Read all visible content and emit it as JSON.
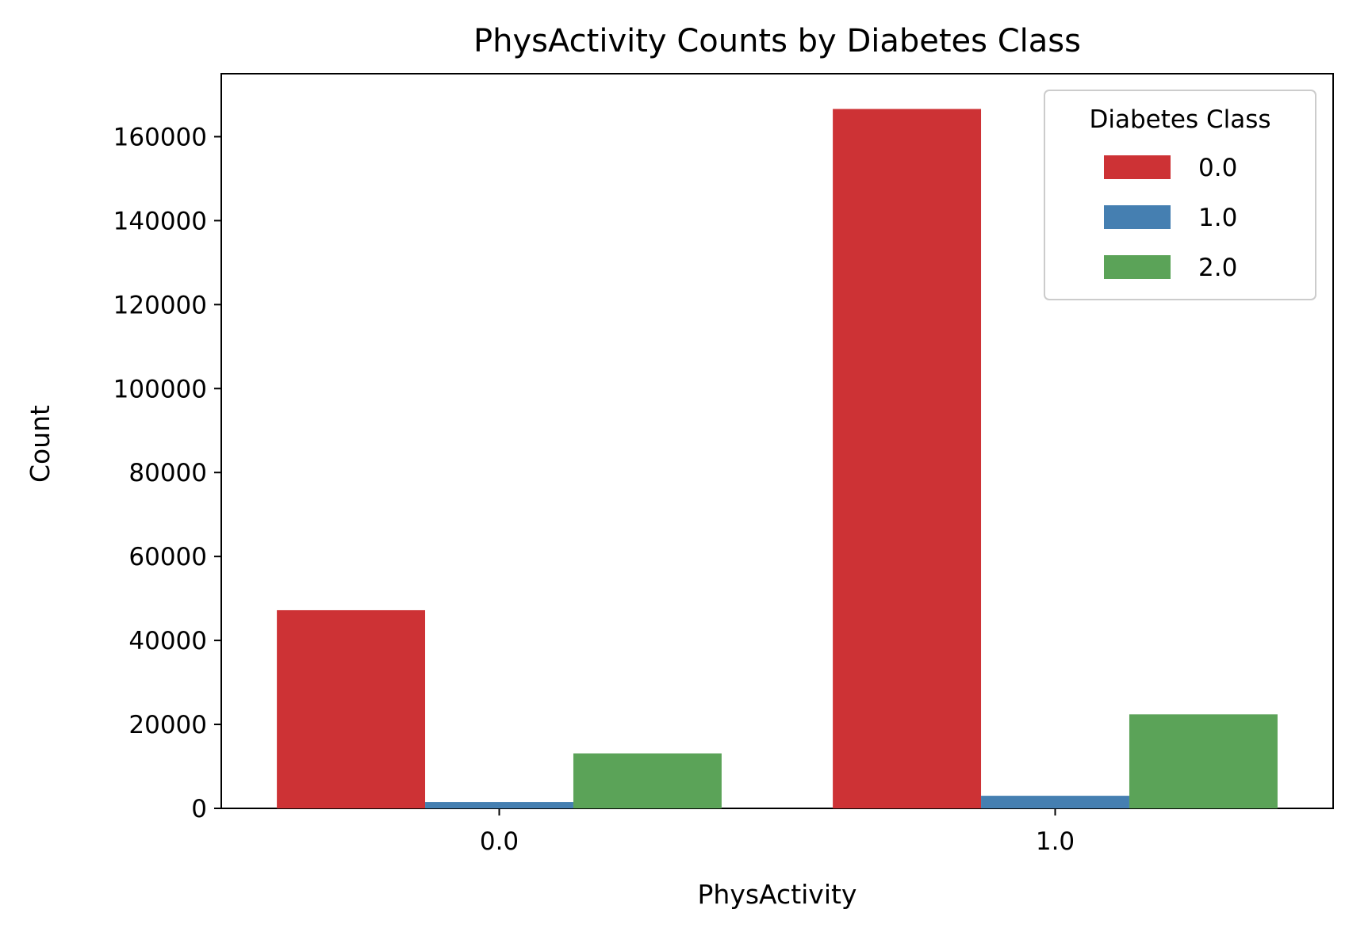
{
  "chart_data": {
    "type": "bar",
    "title": "PhysActivity Counts by Diabetes Class",
    "xlabel": "PhysActivity",
    "ylabel": "Count",
    "categories": [
      "0.0",
      "1.0"
    ],
    "series": [
      {
        "name": "0.0",
        "color": "#cd3235",
        "values": [
          47200,
          166600
        ]
      },
      {
        "name": "1.0",
        "color": "#457fb1",
        "values": [
          1500,
          3000
        ]
      },
      {
        "name": "2.0",
        "color": "#5ba358",
        "values": [
          13100,
          22400
        ]
      }
    ],
    "ylim": [
      0,
      175000
    ],
    "yticks": [
      0,
      20000,
      40000,
      60000,
      80000,
      100000,
      120000,
      140000,
      160000
    ],
    "ytick_labels": [
      "0",
      "20000",
      "40000",
      "60000",
      "80000",
      "100000",
      "120000",
      "140000",
      "160000"
    ],
    "grid": false,
    "legend": {
      "title": "Diabetes Class",
      "position": "top-right"
    }
  }
}
